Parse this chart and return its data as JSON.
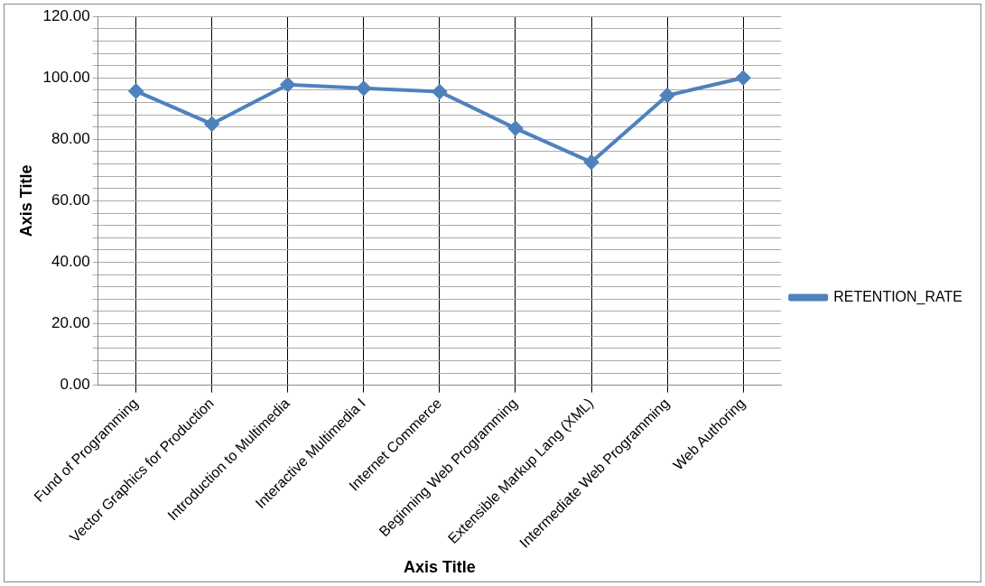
{
  "chart_data": {
    "type": "line",
    "xlabel": "Axis Title",
    "ylabel": "Axis Title",
    "categories": [
      "Fund of Programming",
      "Vector Graphics for Production",
      "Introduction to Multimedia",
      "Interactive Multimedia I",
      "Internet Commerce",
      "Beginning Web Programming",
      "Extensible Markup Lang (XML)",
      "Intermediate Web Programming",
      "Web Authoring"
    ],
    "series": [
      {
        "name": "RETENTION_RATE",
        "color": "#4f81bd",
        "values": [
          95.7,
          85,
          97.8,
          96.6,
          95.5,
          83.6,
          72.6,
          94.3,
          100
        ]
      }
    ],
    "ylim": [
      0,
      120
    ],
    "yticks": [
      {
        "value": 0,
        "label": "0.00"
      },
      {
        "value": 4,
        "label": null
      },
      {
        "value": 8,
        "label": null
      },
      {
        "value": 12,
        "label": null
      },
      {
        "value": 16,
        "label": null
      },
      {
        "value": 20,
        "label": "20.00"
      },
      {
        "value": 24,
        "label": null
      },
      {
        "value": 28,
        "label": null
      },
      {
        "value": 32,
        "label": null
      },
      {
        "value": 36,
        "label": null
      },
      {
        "value": 40,
        "label": "40.00"
      },
      {
        "value": 44,
        "label": null
      },
      {
        "value": 48,
        "label": null
      },
      {
        "value": 52,
        "label": null
      },
      {
        "value": 56,
        "label": null
      },
      {
        "value": 60,
        "label": "60.00"
      },
      {
        "value": 64,
        "label": null
      },
      {
        "value": 68,
        "label": null
      },
      {
        "value": 72,
        "label": null
      },
      {
        "value": 76,
        "label": null
      },
      {
        "value": 80,
        "label": "80.00"
      },
      {
        "value": 84,
        "label": null
      },
      {
        "value": 88,
        "label": null
      },
      {
        "value": 92,
        "label": null
      },
      {
        "value": 96,
        "label": null
      },
      {
        "value": 100,
        "label": "100.00"
      },
      {
        "value": 104,
        "label": null
      },
      {
        "value": 108,
        "label": null
      },
      {
        "value": 112,
        "label": null
      },
      {
        "value": 116,
        "label": null
      },
      {
        "value": 120,
        "label": "120.00"
      }
    ],
    "grid": true,
    "legend": "right",
    "marker": "diamond",
    "line_style": "solid"
  }
}
